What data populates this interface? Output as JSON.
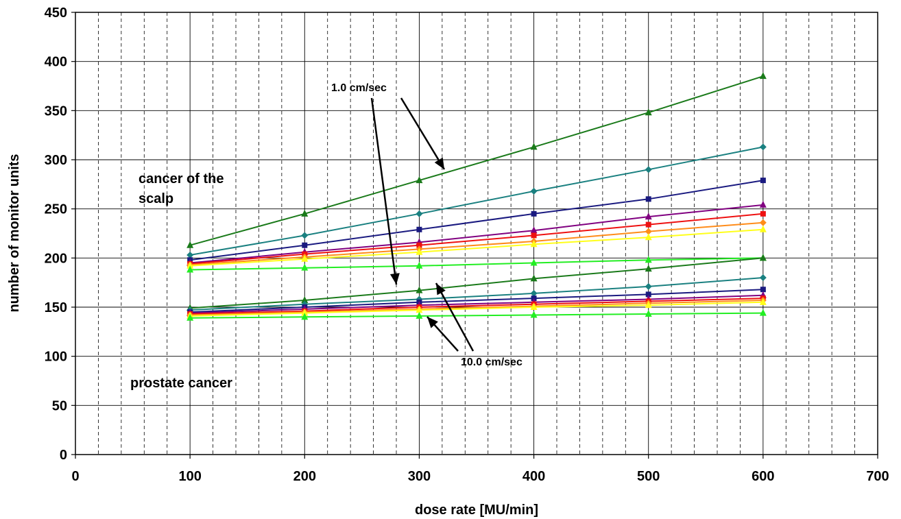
{
  "chart_data": {
    "type": "line",
    "title": "",
    "xlabel": "dose rate [MU/min]",
    "ylabel": "number of monitor units",
    "xlim": [
      0,
      700
    ],
    "ylim": [
      0,
      450
    ],
    "x_ticks": [
      "0",
      "100",
      "200",
      "300",
      "400",
      "500",
      "600",
      "700"
    ],
    "y_ticks": [
      "0",
      "50",
      "100",
      "150",
      "200",
      "250",
      "300",
      "350",
      "400",
      "450"
    ],
    "grid": "major solid, minor dashed vertical",
    "legend": "none",
    "x": [
      100,
      200,
      300,
      400,
      500,
      600
    ],
    "series": [
      {
        "color": "#1a7a1a",
        "marker": "triangle",
        "values": [
          213,
          245,
          279,
          313,
          348,
          385
        ]
      },
      {
        "color": "#1a8080",
        "marker": "diamond",
        "values": [
          203,
          223,
          245,
          268,
          290,
          313
        ]
      },
      {
        "color": "#1a1a80",
        "marker": "square",
        "values": [
          198,
          213,
          229,
          245,
          260,
          279
        ]
      },
      {
        "color": "#800080",
        "marker": "triangle",
        "values": [
          195,
          206,
          216,
          228,
          242,
          254
        ]
      },
      {
        "color": "#ee1111",
        "marker": "square",
        "values": [
          194,
          204,
          213,
          223,
          234,
          245
        ]
      },
      {
        "color": "#ff8c1a",
        "marker": "diamond",
        "values": [
          193,
          201,
          209,
          217,
          227,
          236
        ]
      },
      {
        "color": "#ffff1a",
        "marker": "triangle",
        "values": [
          192,
          199,
          206,
          214,
          221,
          229
        ]
      },
      {
        "color": "#22ee22",
        "marker": "triangle",
        "values": [
          188,
          190,
          192,
          195,
          198,
          200
        ]
      },
      {
        "color": "#1a7a1a",
        "marker": "triangle",
        "values": [
          149,
          157,
          167,
          179,
          189,
          200
        ]
      },
      {
        "color": "#1a8080",
        "marker": "diamond",
        "values": [
          147,
          153,
          158,
          164,
          171,
          180
        ]
      },
      {
        "color": "#1a1a80",
        "marker": "square",
        "values": [
          145,
          150,
          155,
          159,
          163,
          168
        ]
      },
      {
        "color": "#800080",
        "marker": "triangle",
        "values": [
          144,
          148,
          152,
          155,
          158,
          162
        ]
      },
      {
        "color": "#ee1111",
        "marker": "square",
        "values": [
          143,
          146,
          150,
          153,
          156,
          159
        ]
      },
      {
        "color": "#ff8c1a",
        "marker": "diamond",
        "values": [
          142,
          145,
          148,
          151,
          154,
          157
        ]
      },
      {
        "color": "#ffff1a",
        "marker": "triangle",
        "values": [
          141,
          144,
          147,
          150,
          152,
          155
        ]
      },
      {
        "color": "#22ee22",
        "marker": "triangle",
        "values": [
          139,
          140,
          141,
          142,
          143,
          144
        ]
      }
    ],
    "annotations": [
      {
        "text": "1.0 cm/sec"
      },
      {
        "text": "10.0 cm/sec"
      },
      {
        "text": "cancer of the"
      },
      {
        "text": "scalp"
      },
      {
        "text": "prostate cancer"
      }
    ]
  }
}
